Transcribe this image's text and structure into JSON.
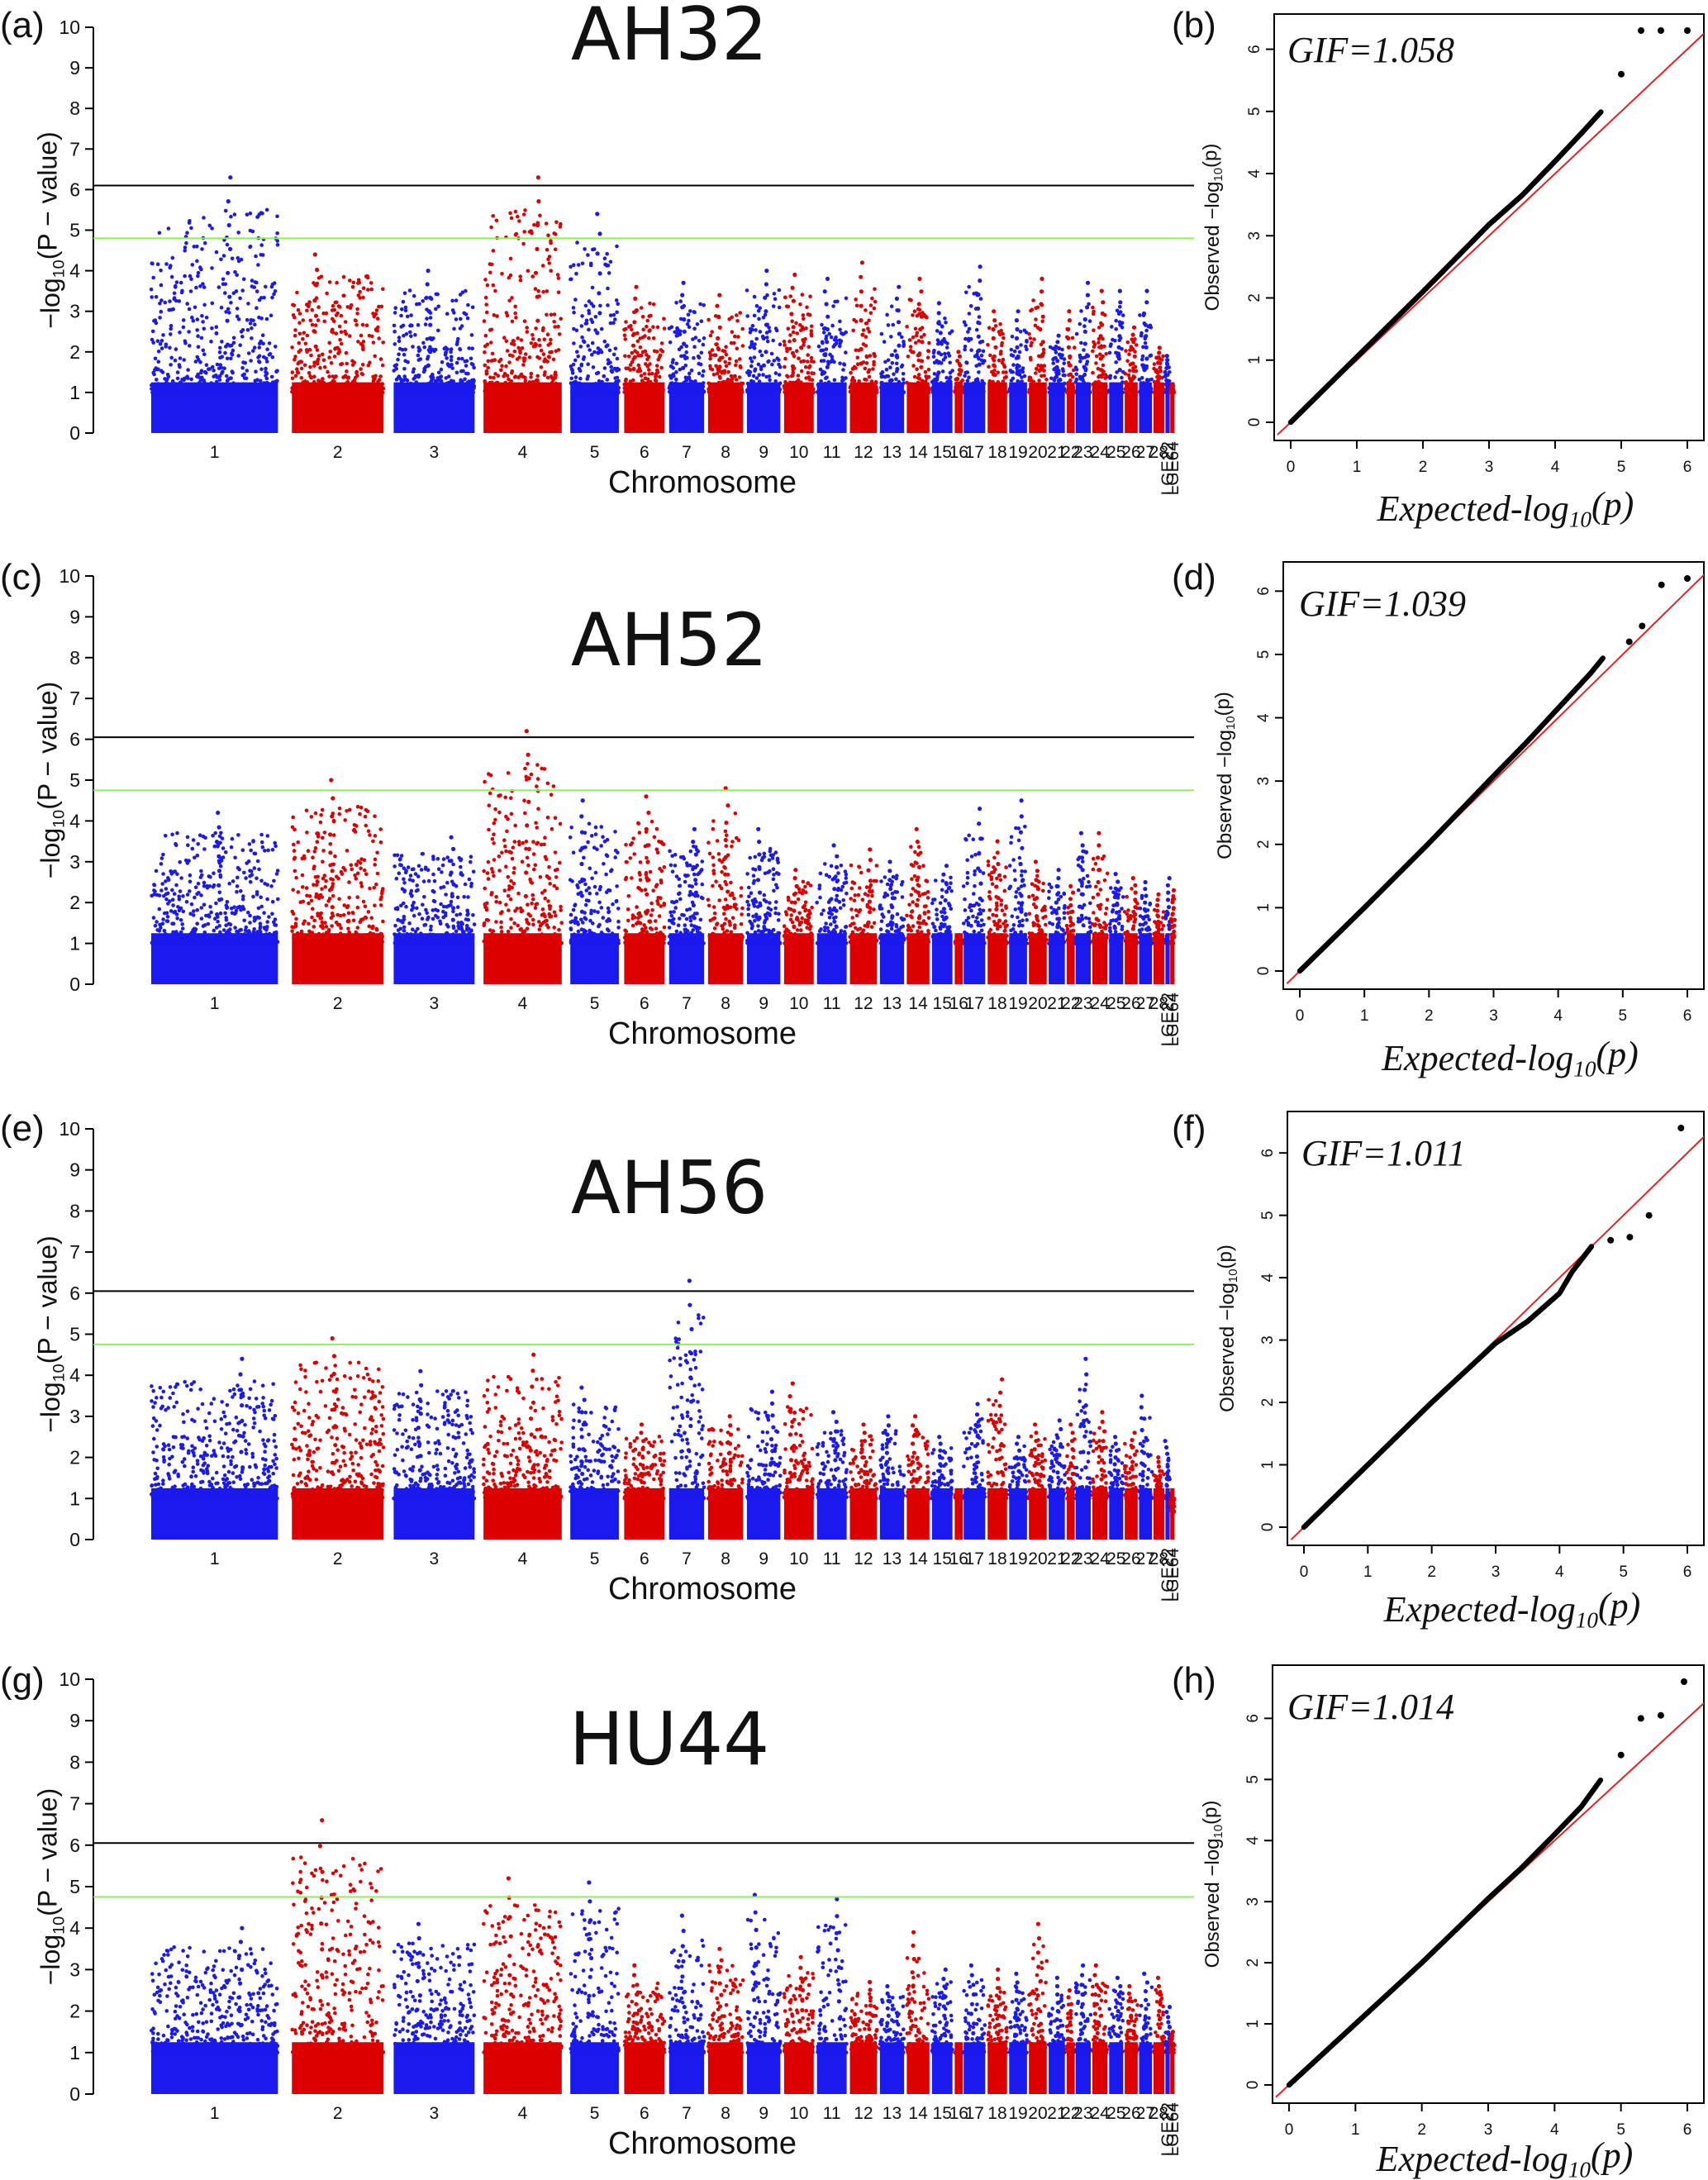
{
  "figure": {
    "manhattan_x_label": "Chromosome",
    "manhattan_y_label": {
      "prefix": "−log",
      "sub": "10",
      "suffix": "(P − value)"
    },
    "qq_x_label": {
      "prefix": "Expected-log",
      "sub": "10",
      "suffix": "(p)"
    },
    "qq_y_label": {
      "prefix": "Observed −log",
      "sub": "10",
      "suffix": "(p)"
    },
    "colors": {
      "blue": "#1a1aee",
      "red": "#dd0000",
      "bonferroni": "#000000",
      "suggestive": "#90ee5a",
      "qq_line": "#e52020",
      "qq_points": "#000000"
    }
  },
  "chart_data": [
    {
      "panel": "(a)",
      "type": "scatter",
      "subtype": "manhattan",
      "title": "AH32",
      "xlabel": "Chromosome",
      "ylabel": "−log10(P − value)",
      "ylim": [
        0,
        10
      ],
      "yticks": [
        "0",
        "1",
        "2",
        "3",
        "4",
        "5",
        "6",
        "7",
        "8",
        "9",
        "10"
      ],
      "thresholds": [
        {
          "name": "bonferroni",
          "value": 6.1
        },
        {
          "name": "suggestive",
          "value": 4.8
        }
      ],
      "chromosomes": [
        "1",
        "2",
        "3",
        "4",
        "5",
        "6",
        "7",
        "8",
        "9",
        "10",
        "11",
        "12",
        "13",
        "14",
        "15",
        "16",
        "17",
        "18",
        "19",
        "20",
        "21",
        "22",
        "23",
        "24",
        "25",
        "26",
        "27",
        "28",
        "LGE22",
        "LGE64"
      ],
      "chromosome_peak_values": [
        6.3,
        4.4,
        4.0,
        6.3,
        5.4,
        3.6,
        3.7,
        3.4,
        4.0,
        3.9,
        3.8,
        4.2,
        3.6,
        3.8,
        3.2,
        2.0,
        4.1,
        3.0,
        3.0,
        3.8,
        2.4,
        3.0,
        3.7,
        3.5,
        3.5,
        2.6,
        3.5,
        2.1,
        1.9,
        1.2
      ]
    },
    {
      "panel": "(b)",
      "type": "scatter",
      "subtype": "qq",
      "annotation": "GIF=1.058",
      "xlabel": "Expected-log10(p)",
      "ylabel": "Observed −log10(p)",
      "xlim": [
        0,
        6
      ],
      "ylim": [
        0,
        6.3
      ],
      "xticks": [
        "0",
        "1",
        "2",
        "3",
        "4",
        "5",
        "6"
      ],
      "yticks": [
        "0",
        "1",
        "2",
        "3",
        "4",
        "5",
        "6"
      ],
      "observed_vs_expected": [
        [
          0,
          0
        ],
        [
          1,
          1.05
        ],
        [
          2,
          2.1
        ],
        [
          3,
          3.18
        ],
        [
          3.5,
          3.65
        ],
        [
          4,
          4.2
        ],
        [
          4.4,
          4.65
        ],
        [
          4.7,
          5.0
        ],
        [
          5.0,
          5.6
        ],
        [
          5.3,
          6.3
        ],
        [
          5.6,
          6.3
        ],
        [
          6.0,
          6.3
        ]
      ]
    },
    {
      "panel": "(c)",
      "type": "scatter",
      "subtype": "manhattan",
      "title": "AH52",
      "xlabel": "Chromosome",
      "ylabel": "−log10(P − value)",
      "ylim": [
        0,
        10
      ],
      "yticks": [
        "0",
        "1",
        "2",
        "3",
        "4",
        "5",
        "6",
        "7",
        "8",
        "9",
        "10"
      ],
      "thresholds": [
        {
          "name": "bonferroni",
          "value": 6.05
        },
        {
          "name": "suggestive",
          "value": 4.75
        }
      ],
      "chromosomes": [
        "1",
        "2",
        "3",
        "4",
        "5",
        "6",
        "7",
        "8",
        "9",
        "10",
        "11",
        "12",
        "13",
        "14",
        "15",
        "16",
        "17",
        "18",
        "19",
        "20",
        "21",
        "22",
        "23",
        "24",
        "25",
        "26",
        "27",
        "28",
        "LGE22",
        "LGE64"
      ],
      "chromosome_peak_values": [
        4.2,
        5.0,
        3.6,
        6.2,
        4.5,
        4.6,
        3.8,
        4.8,
        3.8,
        2.8,
        3.4,
        3.3,
        3.0,
        3.8,
        2.9,
        1.2,
        4.3,
        3.5,
        4.5,
        3.0,
        2.8,
        2.4,
        3.7,
        3.7,
        2.7,
        2.6,
        2.5,
        2.2,
        2.6,
        2.3
      ]
    },
    {
      "panel": "(d)",
      "type": "scatter",
      "subtype": "qq",
      "annotation": "GIF=1.039",
      "xlabel": "Expected-log10(p)",
      "ylabel": "Observed −log10(p)",
      "xlim": [
        0,
        6
      ],
      "ylim": [
        0,
        6.2
      ],
      "xticks": [
        "0",
        "1",
        "2",
        "3",
        "4",
        "5",
        "6"
      ],
      "yticks": [
        "0",
        "1",
        "2",
        "3",
        "4",
        "5",
        "6"
      ],
      "observed_vs_expected": [
        [
          0,
          0
        ],
        [
          1,
          1.0
        ],
        [
          2,
          2.02
        ],
        [
          3,
          3.08
        ],
        [
          3.5,
          3.6
        ],
        [
          4,
          4.15
        ],
        [
          4.5,
          4.7
        ],
        [
          4.7,
          4.95
        ],
        [
          5.1,
          5.2
        ],
        [
          5.3,
          5.45
        ],
        [
          5.6,
          6.1
        ],
        [
          6.0,
          6.2
        ]
      ]
    },
    {
      "panel": "(e)",
      "type": "scatter",
      "subtype": "manhattan",
      "title": "AH56",
      "xlabel": "Chromosome",
      "ylabel": "−log10(P − value)",
      "ylim": [
        0,
        10
      ],
      "yticks": [
        "0",
        "1",
        "2",
        "3",
        "4",
        "5",
        "6",
        "7",
        "8",
        "9",
        "10"
      ],
      "thresholds": [
        {
          "name": "bonferroni",
          "value": 6.05
        },
        {
          "name": "suggestive",
          "value": 4.75
        }
      ],
      "chromosomes": [
        "1",
        "2",
        "3",
        "4",
        "5",
        "6",
        "7",
        "8",
        "9",
        "10",
        "11",
        "12",
        "13",
        "14",
        "15",
        "16",
        "17",
        "18",
        "19",
        "20",
        "21",
        "22",
        "23",
        "24",
        "25",
        "26",
        "27",
        "28",
        "LGE22",
        "LGE64"
      ],
      "chromosome_peak_values": [
        4.4,
        4.9,
        4.1,
        4.5,
        3.7,
        2.8,
        6.3,
        3.0,
        3.6,
        3.8,
        3.1,
        2.8,
        3.0,
        3.0,
        2.5,
        1.1,
        3.3,
        3.9,
        2.5,
        2.8,
        2.9,
        2.8,
        4.4,
        3.1,
        2.5,
        2.6,
        3.5,
        2.0,
        2.4,
        0.6
      ]
    },
    {
      "panel": "(f)",
      "type": "scatter",
      "subtype": "qq",
      "annotation": "GIF=1.011",
      "xlabel": "Expected-log10(p)",
      "ylabel": "Observed −log10(p)",
      "xlim": [
        0,
        6
      ],
      "ylim": [
        0,
        6.4
      ],
      "xticks": [
        "0",
        "1",
        "2",
        "3",
        "4",
        "5",
        "6"
      ],
      "yticks": [
        "0",
        "1",
        "2",
        "3",
        "4",
        "5",
        "6"
      ],
      "observed_vs_expected": [
        [
          0,
          0
        ],
        [
          1,
          1.0
        ],
        [
          2,
          2.0
        ],
        [
          3,
          2.95
        ],
        [
          3.5,
          3.3
        ],
        [
          4,
          3.75
        ],
        [
          4.2,
          4.1
        ],
        [
          4.5,
          4.5
        ],
        [
          4.8,
          4.6
        ],
        [
          5.1,
          4.65
        ],
        [
          5.4,
          5.0
        ],
        [
          5.9,
          6.4
        ]
      ]
    },
    {
      "panel": "(g)",
      "type": "scatter",
      "subtype": "manhattan",
      "title": "HU44",
      "xlabel": "Chromosome",
      "ylabel": "−log10(P − value)",
      "ylim": [
        0,
        10
      ],
      "yticks": [
        "0",
        "1",
        "2",
        "3",
        "4",
        "5",
        "6",
        "7",
        "8",
        "9",
        "10"
      ],
      "thresholds": [
        {
          "name": "bonferroni",
          "value": 6.05
        },
        {
          "name": "suggestive",
          "value": 4.75
        }
      ],
      "chromosomes": [
        "1",
        "2",
        "3",
        "4",
        "5",
        "6",
        "7",
        "8",
        "9",
        "10",
        "11",
        "12",
        "13",
        "14",
        "15",
        "16",
        "17",
        "18",
        "19",
        "20",
        "21",
        "22",
        "23",
        "24",
        "25",
        "26",
        "27",
        "28",
        "LGE22",
        "LGE64"
      ],
      "chromosome_peak_values": [
        4.0,
        6.6,
        4.1,
        5.2,
        5.1,
        3.1,
        4.3,
        3.5,
        4.8,
        3.3,
        4.7,
        2.7,
        2.6,
        3.9,
        3.0,
        1.0,
        3.1,
        3.0,
        2.9,
        4.1,
        2.8,
        2.5,
        3.1,
        3.1,
        2.8,
        2.6,
        2.9,
        2.8,
        2.1,
        1.5
      ]
    },
    {
      "panel": "(h)",
      "type": "scatter",
      "subtype": "qq",
      "annotation": "GIF=1.014",
      "xlabel": "Expected-log10(p)",
      "ylabel": "Observed −log10(p)",
      "xlim": [
        0,
        6
      ],
      "ylim": [
        0,
        6.6
      ],
      "xticks": [
        "0",
        "1",
        "2",
        "3",
        "4",
        "5",
        "6"
      ],
      "yticks": [
        "0",
        "1",
        "2",
        "3",
        "4",
        "5",
        "6"
      ],
      "observed_vs_expected": [
        [
          0,
          0
        ],
        [
          1,
          1.0
        ],
        [
          2,
          2.0
        ],
        [
          3,
          3.05
        ],
        [
          3.5,
          3.55
        ],
        [
          4,
          4.1
        ],
        [
          4.4,
          4.55
        ],
        [
          4.7,
          5.0
        ],
        [
          5.0,
          5.4
        ],
        [
          5.3,
          6.0
        ],
        [
          5.6,
          6.05
        ],
        [
          5.95,
          6.6
        ]
      ]
    }
  ]
}
